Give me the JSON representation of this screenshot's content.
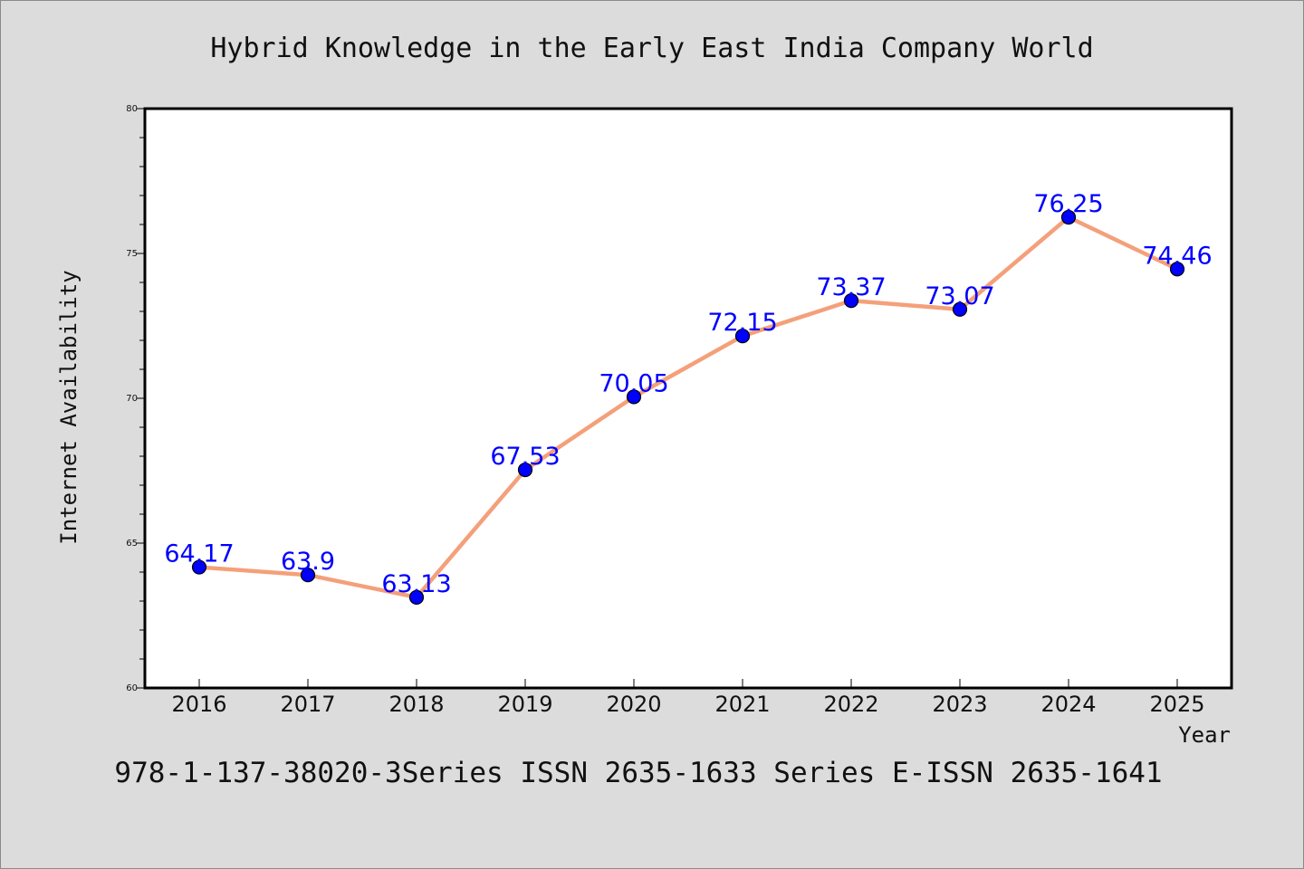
{
  "chart_data": {
    "type": "line",
    "title": "Hybrid Knowledge in the Early East India Company World",
    "xlabel": "Year",
    "ylabel": "Internet Availability",
    "footer": "978-1-137-38020-3Series ISSN 2635-1633 Series E-ISSN 2635-1641",
    "categories": [
      "2016",
      "2017",
      "2018",
      "2019",
      "2020",
      "2021",
      "2022",
      "2023",
      "2024",
      "2025"
    ],
    "values": [
      64.17,
      63.9,
      63.13,
      67.53,
      70.05,
      72.15,
      73.37,
      73.07,
      76.25,
      74.46
    ],
    "data_labels": [
      "64.17",
      "63.9",
      "63.13",
      "67.53",
      "70.05",
      "72.15",
      "73.37",
      "73.07",
      "76.25",
      "74.46"
    ],
    "ylim": [
      60,
      80
    ],
    "yticks": [
      "60",
      "65",
      "70",
      "75",
      "80"
    ],
    "grid": false,
    "legend": "none",
    "colors": {
      "background": "#dcdcdc",
      "plot_background": "#ffffff",
      "line": "#f4a07a",
      "marker": "#0000ff",
      "label": "#0000ff"
    }
  }
}
